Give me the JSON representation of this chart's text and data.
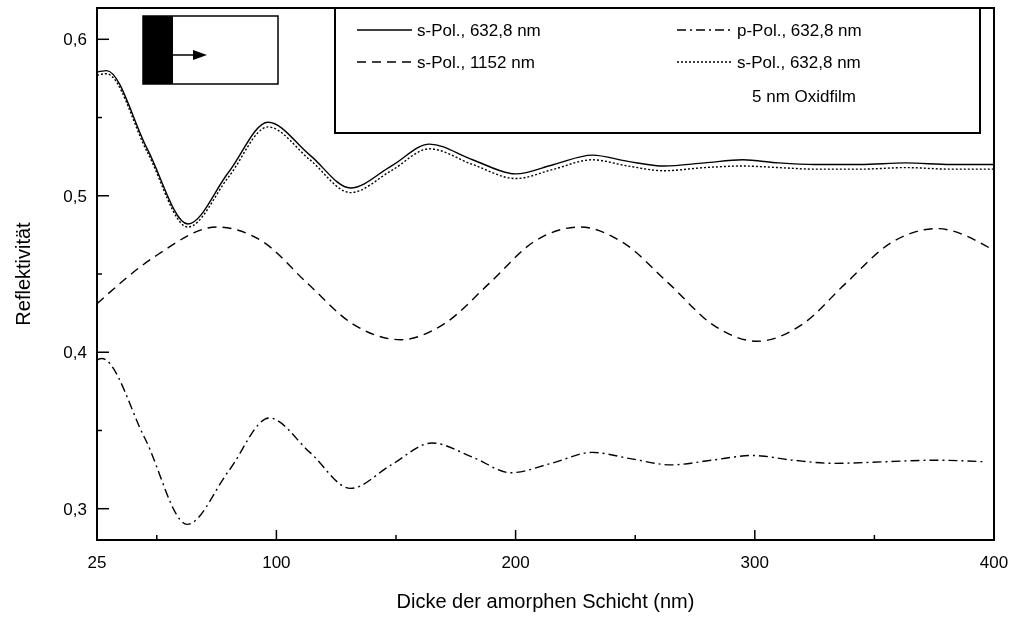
{
  "chart_data": {
    "type": "line",
    "xlabel": "Dicke der amorphen Schicht (nm)",
    "ylabel": "Reflektivität",
    "xlim": [
      25,
      400
    ],
    "ylim": [
      0.28,
      0.62
    ],
    "xticks": [
      25,
      {
        "value": 50,
        "label": null
      },
      100,
      {
        "value": 150,
        "label": null
      },
      200,
      {
        "value": 250,
        "label": null
      },
      300,
      {
        "value": 350,
        "label": null
      },
      400
    ],
    "yticks": [
      {
        "value": 0.3,
        "label": "0,3"
      },
      {
        "value": 0.35,
        "label": null
      },
      {
        "value": 0.4,
        "label": "0,4"
      },
      {
        "value": 0.45,
        "label": null
      },
      {
        "value": 0.5,
        "label": "0,5"
      },
      {
        "value": 0.55,
        "label": null
      },
      {
        "value": 0.6,
        "label": "0,6"
      }
    ],
    "grid": false,
    "legend": "top right",
    "series": [
      {
        "name": "s-Pol., 632,8 nm",
        "color": "#000000",
        "line_style": "solid",
        "x": [
          25,
          29,
          46,
          63,
          80,
          96.5,
          114,
          131,
          148,
          164,
          182,
          200,
          216,
          232,
          247,
          262,
          279,
          295,
          310,
          325,
          344,
          363,
          382,
          400
        ],
        "values": [
          0.579,
          0.58,
          0.53,
          0.482,
          0.515,
          0.547,
          0.526,
          0.505,
          0.519,
          0.533,
          0.523,
          0.514,
          0.52,
          0.526,
          0.522,
          0.519,
          0.521,
          0.523,
          0.521,
          0.52,
          0.52,
          0.521,
          0.52,
          0.52
        ]
      },
      {
        "name": "s-Pol., 1152 nm",
        "color": "#000000",
        "line_style": "dashed",
        "x": [
          25,
          50,
          75,
          94,
          113,
          132,
          152,
          170,
          189,
          208,
          227,
          245,
          264,
          283,
          301,
          320,
          338,
          357,
          376,
          400
        ],
        "values": [
          0.431,
          0.462,
          0.48,
          0.471,
          0.444,
          0.418,
          0.408,
          0.418,
          0.444,
          0.471,
          0.48,
          0.47,
          0.444,
          0.417,
          0.407,
          0.418,
          0.444,
          0.47,
          0.479,
          0.465
        ]
      },
      {
        "name": "p-Pol., 632,8 nm",
        "color": "#000000",
        "line_style": "dashdot",
        "x": [
          25,
          27,
          45,
          62.7,
          80,
          97,
          114,
          131,
          148,
          165,
          182,
          198,
          215,
          232,
          248,
          265,
          282,
          299,
          316,
          333,
          354,
          375,
          396
        ],
        "values": [
          0.395,
          0.396,
          0.345,
          0.29,
          0.324,
          0.358,
          0.336,
          0.313,
          0.328,
          0.342,
          0.333,
          0.323,
          0.329,
          0.336,
          0.332,
          0.328,
          0.331,
          0.334,
          0.331,
          0.329,
          0.33,
          0.331,
          0.33
        ]
      },
      {
        "name": "s-Pol., 632,8 nm\n5 nm Oxidfilm",
        "color": "#000000",
        "line_style": "dotted",
        "x": [
          25,
          29,
          46,
          63,
          80,
          96.5,
          114,
          131,
          148,
          164,
          182,
          200,
          216,
          232,
          247,
          262,
          279,
          295,
          310,
          325,
          344,
          363,
          382,
          400
        ],
        "values": [
          0.577,
          0.578,
          0.528,
          0.48,
          0.512,
          0.544,
          0.523,
          0.502,
          0.516,
          0.53,
          0.52,
          0.511,
          0.517,
          0.523,
          0.519,
          0.516,
          0.518,
          0.519,
          0.518,
          0.517,
          0.517,
          0.518,
          0.517,
          0.517
        ]
      }
    ]
  }
}
